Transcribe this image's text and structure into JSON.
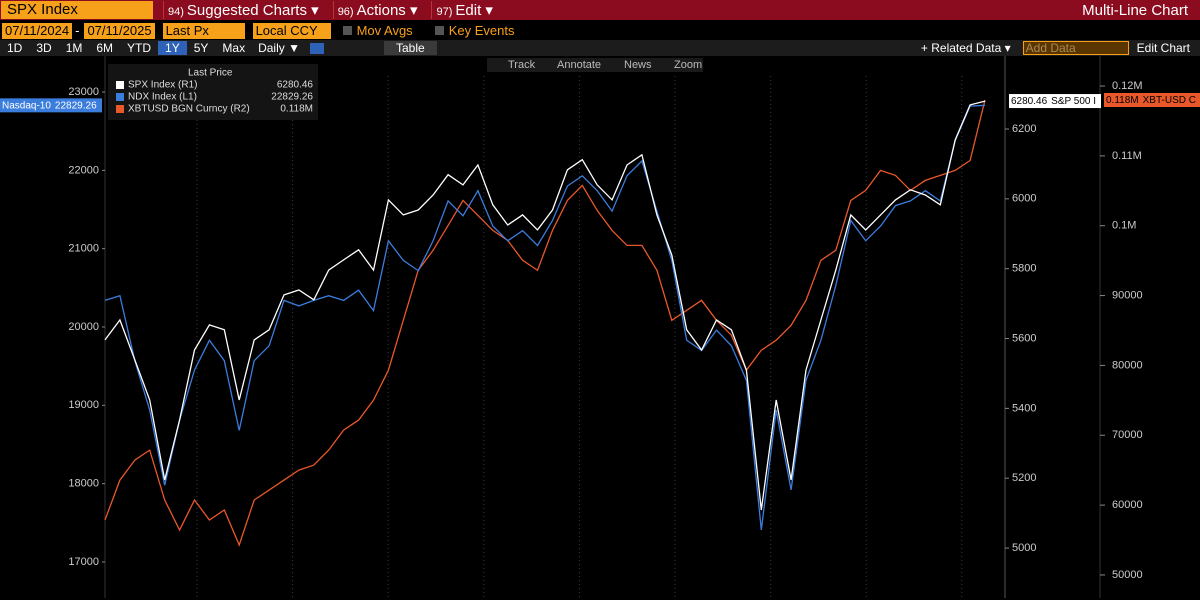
{
  "header": {
    "security": "SPX Index",
    "menus": [
      {
        "num": "94)",
        "label": "Suggested Charts ▾"
      },
      {
        "num": "96)",
        "label": "Actions ▾"
      },
      {
        "num": "97)",
        "label": "Edit ▾"
      }
    ],
    "title": "Multi-Line Chart"
  },
  "controls": {
    "start_date": "07/11/2024",
    "separator": "-",
    "end_date": "07/11/2025",
    "field": "Last Px",
    "currency": "Local CCY",
    "options": [
      "Mov Avgs",
      "Key Events"
    ]
  },
  "toolbar": {
    "periods": [
      "1D",
      "3D",
      "1M",
      "6M",
      "YTD",
      "1Y",
      "5Y",
      "Max"
    ],
    "frequency": "Daily ▼",
    "table": "Table",
    "related_data": "+ Related Data ▾",
    "add_data": "Add Data",
    "edit_chart": "Edit Chart",
    "chart_tools": [
      "Track",
      "Annotate",
      "News",
      "Zoom"
    ]
  },
  "chart_data": {
    "type": "line",
    "legend_title": "Last Price",
    "categories": [
      null,
      null,
      null,
      null,
      null,
      null,
      null,
      null,
      null,
      null,
      null,
      null,
      null,
      null,
      null,
      null,
      null,
      null,
      null,
      null,
      null,
      null,
      null,
      null,
      null,
      null,
      null,
      null,
      null,
      null,
      null,
      null,
      null,
      null,
      null,
      null,
      null,
      null,
      null,
      null,
      null,
      null,
      null,
      null,
      null,
      null,
      null,
      null,
      null,
      null,
      null,
      null,
      null,
      null,
      null,
      null,
      null,
      null,
      null,
      null
    ],
    "ylim": [
      16540,
      23460
    ],
    "yticks": [
      17000,
      18000,
      19000,
      20000,
      21000,
      22000,
      23000
    ],
    "y2lim": [
      4857,
      6409
    ],
    "y2ticks": [
      5000,
      5200,
      5400,
      5600,
      5800,
      6000,
      6200
    ],
    "y3lim": [
      46700,
      124300
    ],
    "y3ticks": [
      50000,
      60000,
      70000,
      80000,
      90000,
      {
        "value": 100000,
        "label": "0.1M"
      },
      {
        "value": 110000,
        "label": "0.11M"
      },
      {
        "value": 120000,
        "label": "0.12M"
      }
    ],
    "series": [
      {
        "name": "SPX Index (R1)",
        "color": "#ffffff",
        "axis": "y2",
        "last_price": 6280.46,
        "tag": "S&P 500 I",
        "values": [
          5596,
          5653,
          5539,
          5424,
          5195,
          5367,
          5567,
          5639,
          5625,
          5424,
          5596,
          5625,
          5725,
          5739,
          5711,
          5796,
          5825,
          5854,
          5796,
          5997,
          5954,
          5968,
          6011,
          6069,
          6040,
          6097,
          5983,
          5925,
          5954,
          5911,
          5968,
          6083,
          6112,
          6040,
          5997,
          6097,
          6126,
          5954,
          5839,
          5625,
          5567,
          5653,
          5625,
          5510,
          5109,
          5424,
          5195,
          5510,
          5653,
          5796,
          5954,
          5911,
          5954,
          5997,
          6026,
          6011,
          5983,
          6169,
          6269,
          6280
        ]
      },
      {
        "name": "NDX Index (L1)",
        "color": "#3b7ddd",
        "axis": "y",
        "last_price": 22829.26,
        "tag": "Nasdaq-10",
        "values": [
          20340,
          20400,
          19570,
          18940,
          17980,
          18810,
          19450,
          19830,
          19570,
          18680,
          19570,
          19760,
          20340,
          20270,
          20340,
          20400,
          20340,
          20470,
          20210,
          21100,
          20850,
          20720,
          21100,
          21610,
          21420,
          21740,
          21290,
          21100,
          21230,
          21040,
          21360,
          21800,
          21930,
          21740,
          21480,
          21930,
          22120,
          21480,
          20850,
          19830,
          19700,
          19960,
          19760,
          19320,
          17410,
          18940,
          17920,
          19320,
          19830,
          20530,
          21360,
          21100,
          21290,
          21550,
          21610,
          21740,
          21610,
          22380,
          22820,
          22830
        ]
      },
      {
        "name": "XBTUSD BGN Curncy (R2)",
        "color": "#e8582a",
        "axis": "y3",
        "last_price": 118000,
        "last_price_label": "0.118M",
        "tag": "XBT-USD C",
        "values": [
          57865,
          63585,
          66445,
          67875,
          60725,
          56435,
          60725,
          57865,
          59295,
          54290,
          60725,
          62155,
          63585,
          65015,
          65730,
          67875,
          70735,
          72165,
          75025,
          79315,
          86465,
          93615,
          96475,
          100050,
          103625,
          101480,
          99335,
          97905,
          95045,
          93615,
          99335,
          103625,
          105770,
          102195,
          99335,
          97190,
          97190,
          93615,
          86465,
          87895,
          89325,
          86465,
          84320,
          79315,
          82175,
          83605,
          85750,
          89325,
          95045,
          96475,
          103625,
          105055,
          107915,
          107200,
          105055,
          106485,
          107200,
          107915,
          109345,
          118000
        ]
      }
    ]
  }
}
